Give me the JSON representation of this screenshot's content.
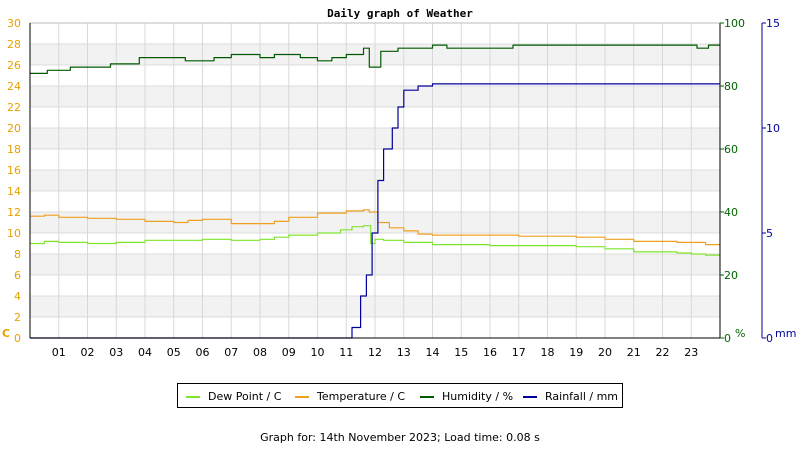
{
  "title": "Daily graph of Weather",
  "footer": "Graph for: 14th November 2023; Load time: 0.08 s",
  "colors": {
    "dew_point": "#7FE52C",
    "temperature": "#F0A020",
    "humidity": "#005A00",
    "rainfall": "#00009A",
    "axis_left": "#E8A000",
    "axis_humidity": "#006400",
    "axis_rain": "#00009A"
  },
  "legend": [
    {
      "label": "Dew Point / C",
      "color": "#7FE52C"
    },
    {
      "label": "Temperature / C",
      "color": "#F0A020"
    },
    {
      "label": "Humidity / %",
      "color": "#005A00"
    },
    {
      "label": "Rainfall / mm",
      "color": "#00009A"
    }
  ],
  "chart_data": {
    "type": "line",
    "title": "Daily graph of Weather",
    "grid": true,
    "legend_position": "bottom",
    "x": {
      "range": [
        0,
        24
      ],
      "tick_labels": [
        "01",
        "02",
        "03",
        "04",
        "05",
        "06",
        "07",
        "08",
        "09",
        "10",
        "11",
        "12",
        "13",
        "14",
        "15",
        "16",
        "17",
        "18",
        "19",
        "20",
        "21",
        "22",
        "23"
      ]
    },
    "axes": {
      "left": {
        "unit": "C",
        "range": [
          0,
          30
        ],
        "ticks": [
          "0",
          "2",
          "4",
          "6",
          "8",
          "10",
          "12",
          "14",
          "16",
          "18",
          "20",
          "22",
          "24",
          "26",
          "28",
          "30"
        ]
      },
      "right_humidity": {
        "unit": "%",
        "range": [
          0,
          100
        ],
        "ticks": [
          "0",
          "20",
          "40",
          "60",
          "80",
          "100"
        ]
      },
      "right_rain": {
        "unit": "mm",
        "range": [
          0,
          15
        ],
        "ticks": [
          "0",
          "5",
          "10",
          "15"
        ]
      }
    },
    "series": [
      {
        "name": "Dew Point / C",
        "axis": "left",
        "points": [
          [
            0,
            9.0
          ],
          [
            0.5,
            9.2
          ],
          [
            1.0,
            9.1
          ],
          [
            2.0,
            9.0
          ],
          [
            3.0,
            9.1
          ],
          [
            4.0,
            9.3
          ],
          [
            5.0,
            9.3
          ],
          [
            6.0,
            9.4
          ],
          [
            7.0,
            9.3
          ],
          [
            8.0,
            9.4
          ],
          [
            8.5,
            9.6
          ],
          [
            9.0,
            9.8
          ],
          [
            10.0,
            10.0
          ],
          [
            10.8,
            10.3
          ],
          [
            11.2,
            10.6
          ],
          [
            11.6,
            10.7
          ],
          [
            11.85,
            9.0
          ],
          [
            12.0,
            9.4
          ],
          [
            12.3,
            9.3
          ],
          [
            13.0,
            9.1
          ],
          [
            14.0,
            8.9
          ],
          [
            16.0,
            8.8
          ],
          [
            17.0,
            8.8
          ],
          [
            18.0,
            8.8
          ],
          [
            19.0,
            8.7
          ],
          [
            20.0,
            8.5
          ],
          [
            21.0,
            8.2
          ],
          [
            22.5,
            8.1
          ],
          [
            23.0,
            8.0
          ],
          [
            23.5,
            7.9
          ],
          [
            24.0,
            7.9
          ]
        ]
      },
      {
        "name": "Temperature / C",
        "axis": "left",
        "points": [
          [
            0,
            11.6
          ],
          [
            0.5,
            11.7
          ],
          [
            1.0,
            11.5
          ],
          [
            2.0,
            11.4
          ],
          [
            3.0,
            11.3
          ],
          [
            4.0,
            11.1
          ],
          [
            5.0,
            11.0
          ],
          [
            5.5,
            11.2
          ],
          [
            6.0,
            11.3
          ],
          [
            7.0,
            10.9
          ],
          [
            8.0,
            10.9
          ],
          [
            8.5,
            11.1
          ],
          [
            9.0,
            11.5
          ],
          [
            10.0,
            11.9
          ],
          [
            11.0,
            12.1
          ],
          [
            11.6,
            12.2
          ],
          [
            11.8,
            12.0
          ],
          [
            12.1,
            11.0
          ],
          [
            12.5,
            10.5
          ],
          [
            13.0,
            10.2
          ],
          [
            13.5,
            9.9
          ],
          [
            14.0,
            9.8
          ],
          [
            16.0,
            9.8
          ],
          [
            17.0,
            9.7
          ],
          [
            18.0,
            9.7
          ],
          [
            19.0,
            9.6
          ],
          [
            20.0,
            9.4
          ],
          [
            21.0,
            9.2
          ],
          [
            22.5,
            9.1
          ],
          [
            23.0,
            9.1
          ],
          [
            23.5,
            8.9
          ],
          [
            24.0,
            8.8
          ]
        ]
      },
      {
        "name": "Humidity / %",
        "axis": "right_humidity",
        "points": [
          [
            0,
            84
          ],
          [
            0.6,
            85
          ],
          [
            1.4,
            86
          ],
          [
            2.8,
            87
          ],
          [
            3.8,
            89
          ],
          [
            5.4,
            88
          ],
          [
            6.4,
            89
          ],
          [
            7.0,
            90
          ],
          [
            8.0,
            89
          ],
          [
            8.5,
            90
          ],
          [
            9.4,
            89
          ],
          [
            10.0,
            88
          ],
          [
            10.5,
            89
          ],
          [
            11.0,
            90
          ],
          [
            11.6,
            92
          ],
          [
            11.8,
            86
          ],
          [
            12.2,
            91
          ],
          [
            12.8,
            92
          ],
          [
            14.0,
            93
          ],
          [
            14.5,
            92
          ],
          [
            16.8,
            93
          ],
          [
            20.0,
            93
          ],
          [
            22.8,
            93
          ],
          [
            23.2,
            92
          ],
          [
            23.6,
            93
          ],
          [
            24.0,
            93
          ]
        ]
      },
      {
        "name": "Rainfall / mm",
        "axis": "right_rain",
        "points": [
          [
            0,
            0
          ],
          [
            11.0,
            0
          ],
          [
            11.2,
            0.5
          ],
          [
            11.5,
            2.0
          ],
          [
            11.7,
            3.0
          ],
          [
            11.9,
            5.0
          ],
          [
            12.1,
            7.5
          ],
          [
            12.3,
            9.0
          ],
          [
            12.6,
            10.0
          ],
          [
            12.8,
            11.0
          ],
          [
            13.0,
            11.8
          ],
          [
            13.5,
            12.0
          ],
          [
            14.0,
            12.1
          ],
          [
            24.0,
            12.1
          ]
        ]
      }
    ]
  }
}
